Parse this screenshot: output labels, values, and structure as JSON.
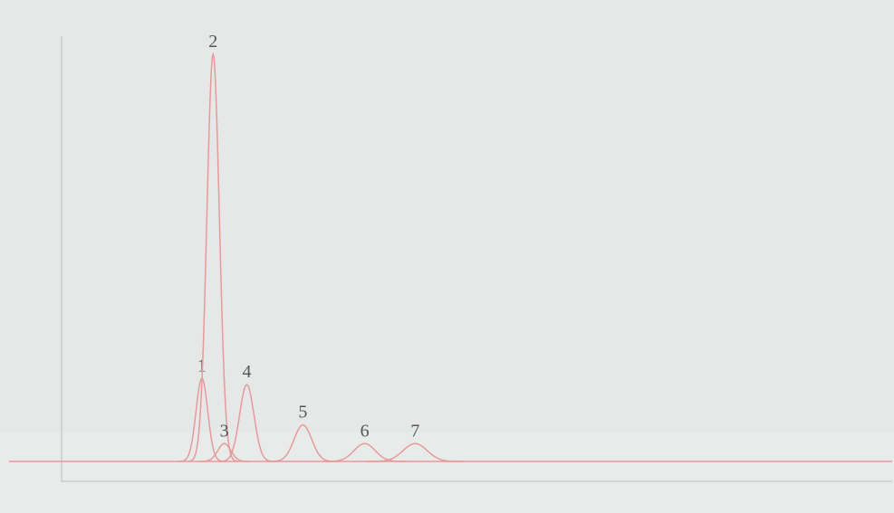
{
  "chart_data": {
    "type": "line",
    "peak_labels": [
      "1",
      "2",
      "3",
      "4",
      "5",
      "6",
      "7"
    ],
    "x": [
      2.5,
      2.7,
      2.9,
      3.3,
      4.3,
      5.4,
      6.3
    ],
    "series": [
      {
        "color": "#e59a9a",
        "values": [
          107,
          525,
          23,
          99,
          47,
          23,
          23
        ]
      }
    ],
    "xlim": [
      0,
      14.8
    ],
    "ylim": [
      0,
      560
    ]
  }
}
